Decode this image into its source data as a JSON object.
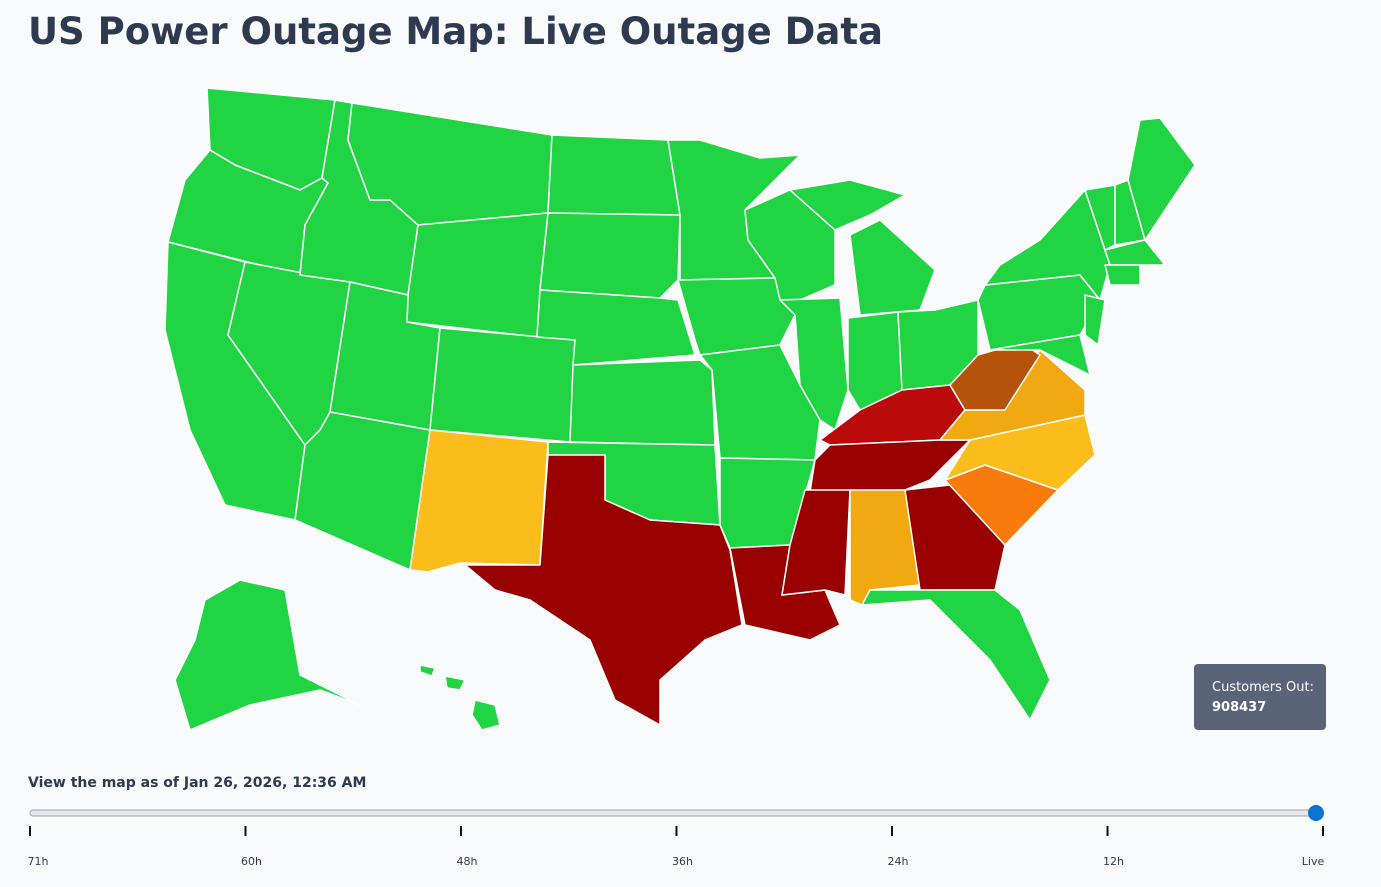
{
  "header": {
    "title": "US Power Outage Map: Live Outage Data"
  },
  "tooltip": {
    "label": "Customers Out:",
    "value": 908437
  },
  "slider": {
    "caption": "View the map as of Jan 26, 2026, 12:36 AM",
    "ticks": [
      "71h",
      "60h",
      "48h",
      "36h",
      "24h",
      "12h",
      "Live"
    ]
  }
}
